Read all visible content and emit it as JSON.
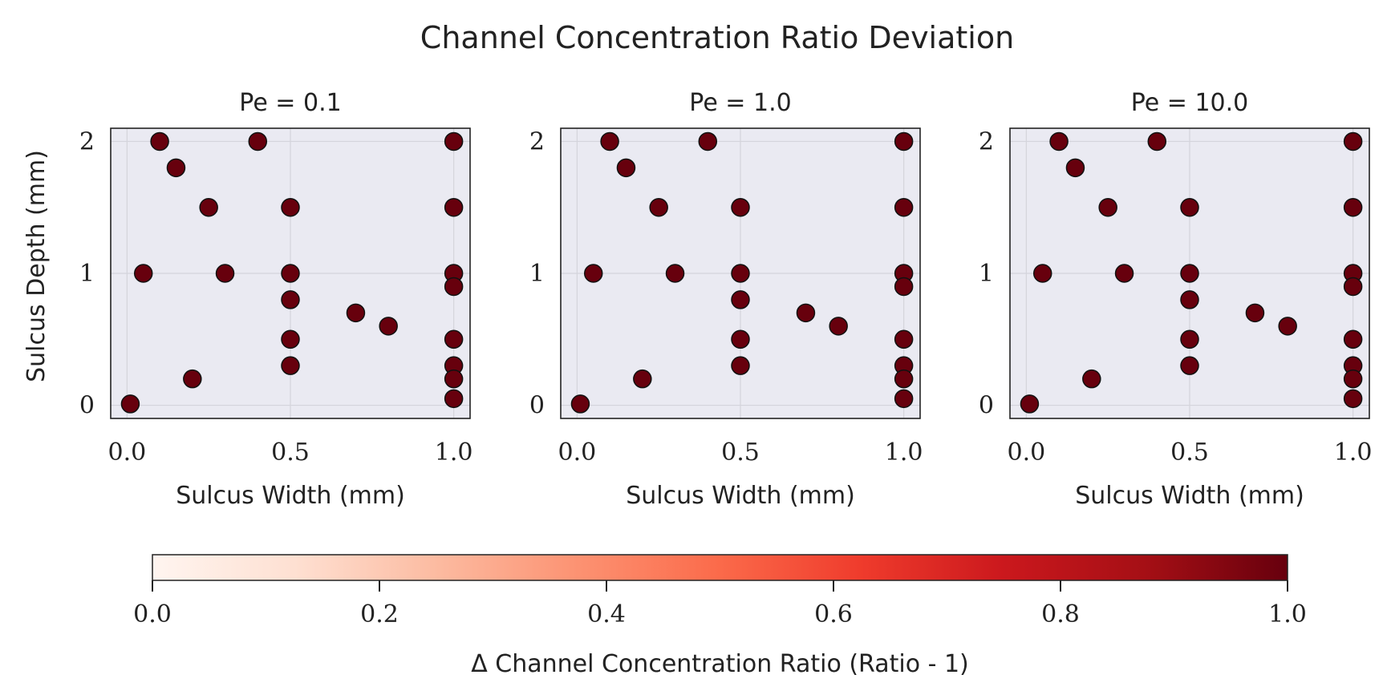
{
  "chart_data": {
    "type": "scatter",
    "title": "Channel Concentration Ratio Deviation",
    "panels": [
      {
        "title": "Pe = 0.1"
      },
      {
        "title": "Pe = 1.0"
      },
      {
        "title": "Pe = 10.0"
      }
    ],
    "xlabel": "Sulcus Width (mm)",
    "ylabel": "Sulcus Depth (mm)",
    "xlim": [
      -0.05,
      1.05
    ],
    "ylim": [
      -0.1,
      2.1
    ],
    "xticks": [
      0.0,
      0.5,
      1.0
    ],
    "xtick_labels": [
      "0.0",
      "0.5",
      "1.0"
    ],
    "yticks": [
      0,
      1,
      2
    ],
    "ytick_labels": [
      "0",
      "1",
      "2"
    ],
    "grid": true,
    "points": {
      "x": [
        0.1,
        0.4,
        1.0,
        0.15,
        0.25,
        0.5,
        1.0,
        0.05,
        0.3,
        0.5,
        1.0,
        1.0,
        0.5,
        0.7,
        0.8,
        0.5,
        1.0,
        0.5,
        1.0,
        0.2,
        1.0,
        0.01,
        1.0
      ],
      "y": [
        2.0,
        2.0,
        2.0,
        1.8,
        1.5,
        1.5,
        1.5,
        1.0,
        1.0,
        1.0,
        1.0,
        0.9,
        0.8,
        0.7,
        0.6,
        0.5,
        0.5,
        0.3,
        0.3,
        0.2,
        0.2,
        0.01,
        0.05
      ],
      "value": 1.0
    },
    "point_color": "#67000d",
    "panel_background": "#eaeaf2",
    "colorbar": {
      "label": "Δ Channel Concentration Ratio (Ratio - 1)",
      "range": [
        0.0,
        1.0
      ],
      "ticks": [
        0.0,
        0.2,
        0.4,
        0.6,
        0.8,
        1.0
      ],
      "tick_labels": [
        "0.0",
        "0.2",
        "0.4",
        "0.6",
        "0.8",
        "1.0"
      ],
      "colormap": "Reds",
      "colors": [
        "#fff5f0",
        "#fee0d2",
        "#fcbba1",
        "#fc9272",
        "#fb6a4a",
        "#ef3b2c",
        "#cb181d",
        "#a50f15",
        "#67000d"
      ]
    }
  }
}
